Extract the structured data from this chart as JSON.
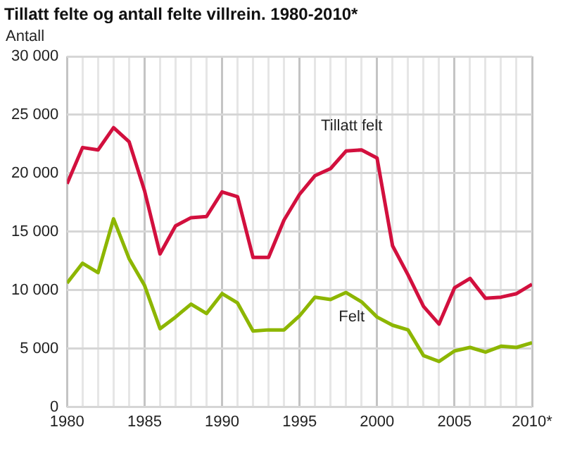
{
  "chart_data": {
    "type": "line",
    "title": "Tillatt felte og antall felte villrein. 1980-2010*",
    "ylabel": "Antall",
    "x": [
      1980,
      1981,
      1982,
      1983,
      1984,
      1985,
      1986,
      1987,
      1988,
      1989,
      1990,
      1991,
      1992,
      1993,
      1994,
      1995,
      1996,
      1997,
      1998,
      1999,
      2000,
      2001,
      2002,
      2003,
      2004,
      2005,
      2006,
      2007,
      2008,
      2009,
      2010
    ],
    "series": [
      {
        "name": "Tillatt felt",
        "color": "#d2103e",
        "values": [
          19100,
          22200,
          22000,
          23900,
          22700,
          18500,
          13100,
          15500,
          16200,
          16300,
          18400,
          18000,
          12800,
          12800,
          16000,
          18200,
          19800,
          20400,
          21900,
          22000,
          21300,
          13800,
          11300,
          8600,
          7100,
          10200,
          11000,
          9300,
          9400,
          9700,
          10500
        ]
      },
      {
        "name": "Felt",
        "color": "#8db600",
        "values": [
          10600,
          12300,
          11500,
          16100,
          12700,
          10400,
          6700,
          7700,
          8800,
          8000,
          9700,
          8900,
          6500,
          6600,
          6600,
          7800,
          9400,
          9200,
          9800,
          9000,
          7700,
          7000,
          6600,
          4400,
          3900,
          4800,
          5100,
          4700,
          5200,
          5100,
          5500
        ]
      }
    ],
    "xlim": [
      1980,
      2010
    ],
    "xticks": [
      1980,
      {
        "value": 1981,
        "label": null
      },
      {
        "value": 1982,
        "label": null
      },
      {
        "value": 1983,
        "label": null
      },
      {
        "value": 1984,
        "label": null
      },
      1985,
      {
        "value": 1986,
        "label": null
      },
      {
        "value": 1987,
        "label": null
      },
      {
        "value": 1988,
        "label": null
      },
      {
        "value": 1989,
        "label": null
      },
      1990,
      {
        "value": 1991,
        "label": null
      },
      {
        "value": 1992,
        "label": null
      },
      {
        "value": 1993,
        "label": null
      },
      {
        "value": 1994,
        "label": null
      },
      1995,
      {
        "value": 1996,
        "label": null
      },
      {
        "value": 1997,
        "label": null
      },
      {
        "value": 1998,
        "label": null
      },
      {
        "value": 1999,
        "label": null
      },
      2000,
      {
        "value": 2001,
        "label": null
      },
      {
        "value": 2002,
        "label": null
      },
      {
        "value": 2003,
        "label": null
      },
      {
        "value": 2004,
        "label": null
      },
      2005,
      {
        "value": 2006,
        "label": null
      },
      {
        "value": 2007,
        "label": null
      },
      {
        "value": 2008,
        "label": null
      },
      {
        "value": 2009,
        "label": null
      },
      {
        "value": 2010,
        "label": "2010*"
      }
    ],
    "ylim": [
      0,
      30000
    ],
    "yticks": [
      {
        "value": 0,
        "label": "0"
      },
      {
        "value": 5000,
        "label": "5 000"
      },
      {
        "value": 10000,
        "label": "10 000"
      },
      {
        "value": 15000,
        "label": "15 000"
      },
      {
        "value": 20000,
        "label": "20 000"
      },
      {
        "value": 25000,
        "label": "25 000"
      },
      {
        "value": 30000,
        "label": "30 000"
      }
    ],
    "grid": true,
    "marker": "none"
  }
}
